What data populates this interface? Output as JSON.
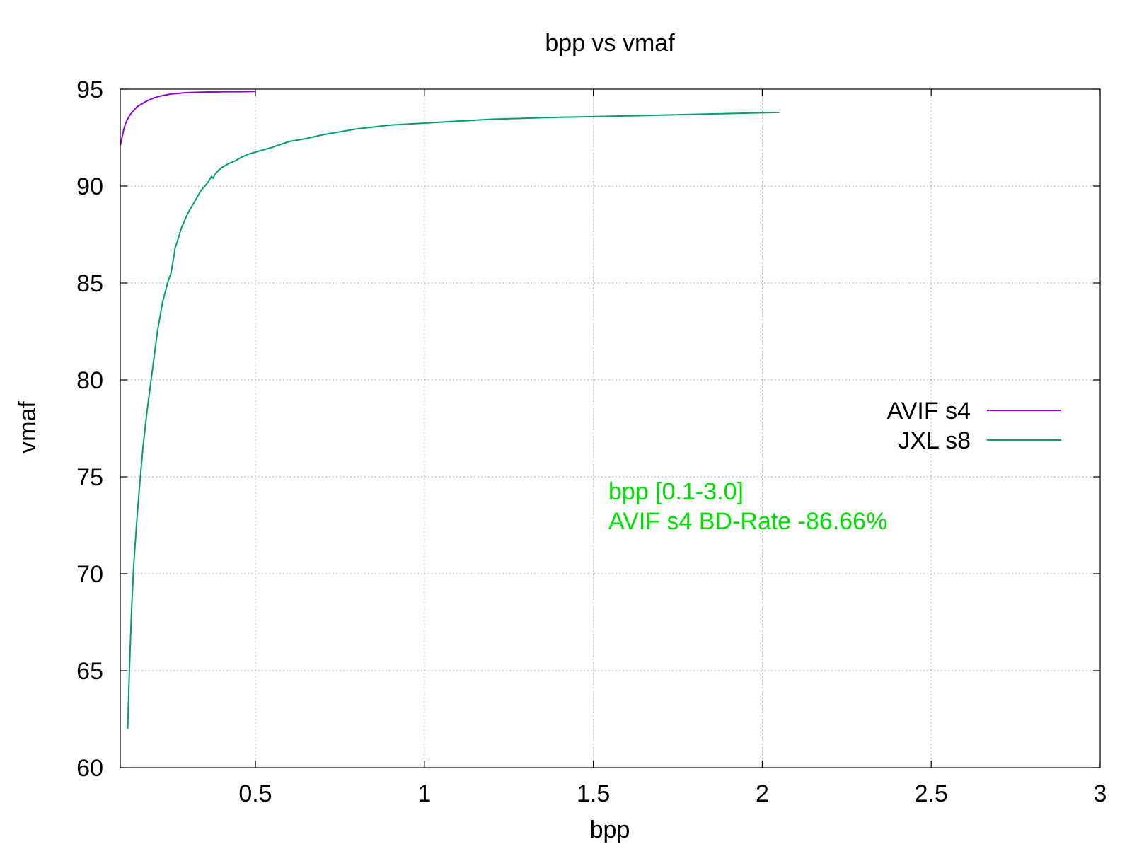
{
  "chart_data": {
    "type": "line",
    "title": "bpp vs vmaf",
    "xlabel": "bpp",
    "ylabel": "vmaf",
    "xlim": [
      0.1,
      3.0
    ],
    "ylim": [
      60,
      95
    ],
    "x_ticks": [
      0.5,
      1,
      1.5,
      2,
      2.5,
      3
    ],
    "x_tick_labels": [
      "0.5",
      "1",
      "1.5",
      "2",
      "2.5",
      "3"
    ],
    "y_ticks": [
      60,
      65,
      70,
      75,
      80,
      85,
      90,
      95
    ],
    "y_tick_labels": [
      "60",
      "65",
      "70",
      "75",
      "80",
      "85",
      "90",
      "95"
    ],
    "grid": true,
    "legend_position": "right",
    "series": [
      {
        "name": "AVIF s4",
        "color": "#9400d3",
        "x": [
          0.1,
          0.105,
          0.11,
          0.115,
          0.12,
          0.13,
          0.14,
          0.15,
          0.16,
          0.18,
          0.2,
          0.22,
          0.25,
          0.28,
          0.3,
          0.35,
          0.4,
          0.45,
          0.5
        ],
        "y": [
          92.1,
          92.5,
          92.9,
          93.2,
          93.4,
          93.7,
          93.9,
          94.1,
          94.2,
          94.4,
          94.55,
          94.65,
          94.75,
          94.8,
          94.82,
          94.85,
          94.86,
          94.87,
          94.88
        ]
      },
      {
        "name": "JXL s8",
        "color": "#009e73",
        "x": [
          0.122,
          0.127,
          0.133,
          0.14,
          0.148,
          0.157,
          0.167,
          0.18,
          0.195,
          0.21,
          0.225,
          0.24,
          0.25,
          0.26,
          0.262,
          0.27,
          0.28,
          0.29,
          0.3,
          0.32,
          0.34,
          0.36,
          0.37,
          0.375,
          0.38,
          0.385,
          0.39,
          0.4,
          0.42,
          0.44,
          0.46,
          0.48,
          0.5,
          0.55,
          0.6,
          0.65,
          0.7,
          0.8,
          0.9,
          1.0,
          1.1,
          1.2,
          1.3,
          1.4,
          1.5,
          1.6,
          1.7,
          1.8,
          1.9,
          2.0,
          2.05
        ],
        "y": [
          62.0,
          65.0,
          68.0,
          70.5,
          72.5,
          74.5,
          76.5,
          78.5,
          80.5,
          82.5,
          84.0,
          85.0,
          85.5,
          86.5,
          86.8,
          87.2,
          87.8,
          88.2,
          88.6,
          89.2,
          89.8,
          90.2,
          90.5,
          90.4,
          90.6,
          90.7,
          90.8,
          90.95,
          91.15,
          91.3,
          91.5,
          91.65,
          91.75,
          92.0,
          92.3,
          92.45,
          92.65,
          92.95,
          93.15,
          93.25,
          93.35,
          93.45,
          93.5,
          93.55,
          93.58,
          93.62,
          93.66,
          93.7,
          93.74,
          93.78,
          93.8
        ]
      }
    ],
    "annotations": [
      {
        "text": "bpp [0.1-3.0]",
        "color": "#00e000"
      },
      {
        "text": "AVIF s4 BD-Rate -86.66%",
        "color": "#00e000"
      }
    ]
  }
}
